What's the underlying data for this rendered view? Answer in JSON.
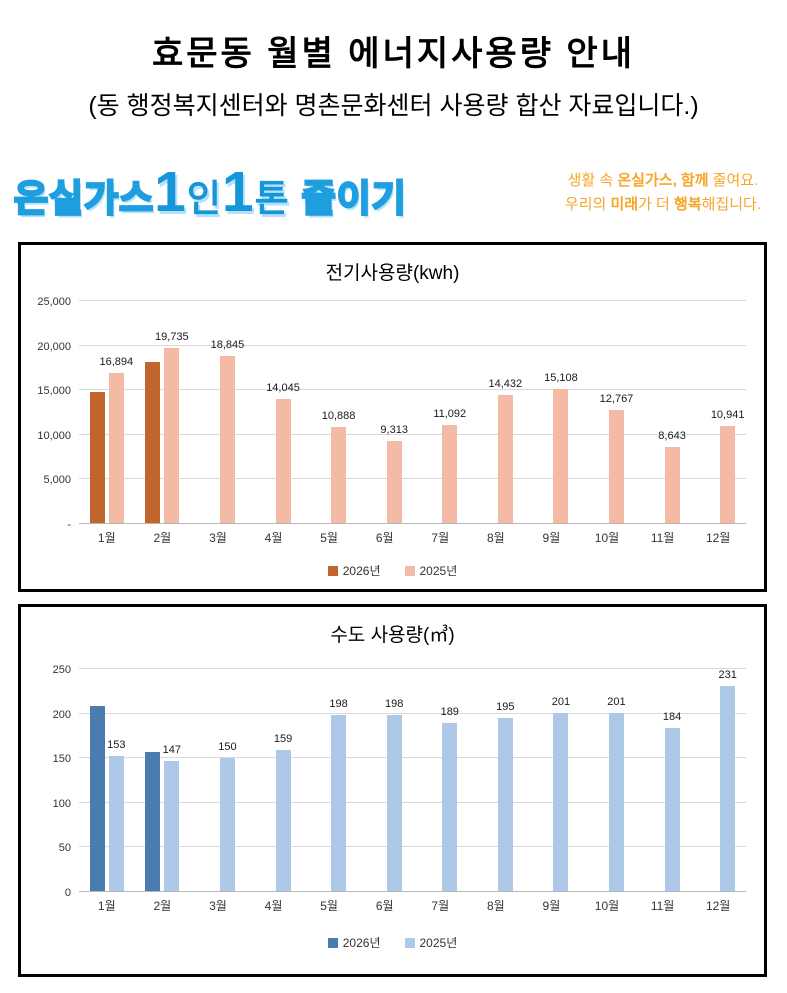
{
  "page": {
    "title": "효문동 월별 에너지사용량 안내",
    "subtitle": "(동 행정복지센터와 명촌문화센터 사용량 합산 자료입니다.)"
  },
  "brand": {
    "logo": {
      "color": "#1496D8",
      "segments": [
        {
          "text": "온실가스",
          "style": "outline",
          "size": "normal",
          "gap": false
        },
        {
          "text": "1",
          "style": "solid",
          "size": "big",
          "gap": false
        },
        {
          "text": "인",
          "style": "solid",
          "size": "normal",
          "gap": false
        },
        {
          "text": "1",
          "style": "solid",
          "size": "big",
          "gap": false
        },
        {
          "text": "톤",
          "style": "solid",
          "size": "normal",
          "gap": false
        },
        {
          "text": "줄이기",
          "style": "outline",
          "size": "normal",
          "gap": true
        }
      ]
    },
    "tagline": {
      "color": "#F7A529",
      "lines": [
        [
          {
            "text": "생활 속 ",
            "bold": false
          },
          {
            "text": "온실가스, 함께",
            "bold": true
          },
          {
            "text": " 줄여요.",
            "bold": false
          }
        ],
        [
          {
            "text": "우리의 ",
            "bold": false
          },
          {
            "text": "미래",
            "bold": true
          },
          {
            "text": "가 더 ",
            "bold": false
          },
          {
            "text": "행복",
            "bold": true
          },
          {
            "text": "해집니다.",
            "bold": false
          }
        ]
      ]
    }
  },
  "chart_data": [
    {
      "type": "bar",
      "title": "전기사용량(kwh)",
      "categories": [
        "1월",
        "2월",
        "3월",
        "4월",
        "5월",
        "6월",
        "7월",
        "8월",
        "9월",
        "10월",
        "11월",
        "12월"
      ],
      "ylim": [
        0,
        25000
      ],
      "grid": true,
      "legend_position": "bottom",
      "yticks": [
        {
          "value": 25000,
          "label": "25,000"
        },
        {
          "value": 20000,
          "label": "20,000"
        },
        {
          "value": 15000,
          "label": "15,000"
        },
        {
          "value": 10000,
          "label": "10,000"
        },
        {
          "value": 5000,
          "label": "5,000"
        },
        {
          "value": 0,
          "label": "-"
        }
      ],
      "series": [
        {
          "name": "2026년",
          "color": "#C2652C",
          "values": [
            14850,
            18200,
            null,
            null,
            null,
            null,
            null,
            null,
            null,
            null,
            null,
            null
          ],
          "data_labels": null
        },
        {
          "name": "2025년",
          "color": "#F3BAA5",
          "values": [
            16894,
            19735,
            18845,
            14045,
            10888,
            9313,
            11092,
            14432,
            15108,
            12767,
            8643,
            10941
          ],
          "data_labels": [
            "16,894",
            "19,735",
            "18,845",
            "14,045",
            "10,888",
            "9,313",
            "11,092",
            "14,432",
            "15,108",
            "12,767",
            "8,643",
            "10,941"
          ]
        }
      ]
    },
    {
      "type": "bar",
      "title": "수도 사용량(㎥)",
      "categories": [
        "1월",
        "2월",
        "3월",
        "4월",
        "5월",
        "6월",
        "7월",
        "8월",
        "9월",
        "10월",
        "11월",
        "12월"
      ],
      "ylim": [
        0,
        250
      ],
      "grid": true,
      "legend_position": "bottom",
      "yticks": [
        {
          "value": 250,
          "label": "250"
        },
        {
          "value": 200,
          "label": "200"
        },
        {
          "value": 150,
          "label": "150"
        },
        {
          "value": 100,
          "label": "100"
        },
        {
          "value": 50,
          "label": "50"
        },
        {
          "value": 0,
          "label": "0"
        }
      ],
      "series": [
        {
          "name": "2026년",
          "color": "#4A7CB0",
          "values": [
            209,
            157,
            null,
            null,
            null,
            null,
            null,
            null,
            null,
            null,
            null,
            null
          ],
          "data_labels": null
        },
        {
          "name": "2025년",
          "color": "#AEC8E8",
          "values": [
            153,
            147,
            150,
            159,
            198,
            198,
            189,
            195,
            201,
            201,
            184,
            231
          ],
          "data_labels": [
            "153",
            "147",
            "150",
            "159",
            "198",
            "198",
            "189",
            "195",
            "201",
            "201",
            "184",
            "231"
          ]
        }
      ]
    }
  ]
}
